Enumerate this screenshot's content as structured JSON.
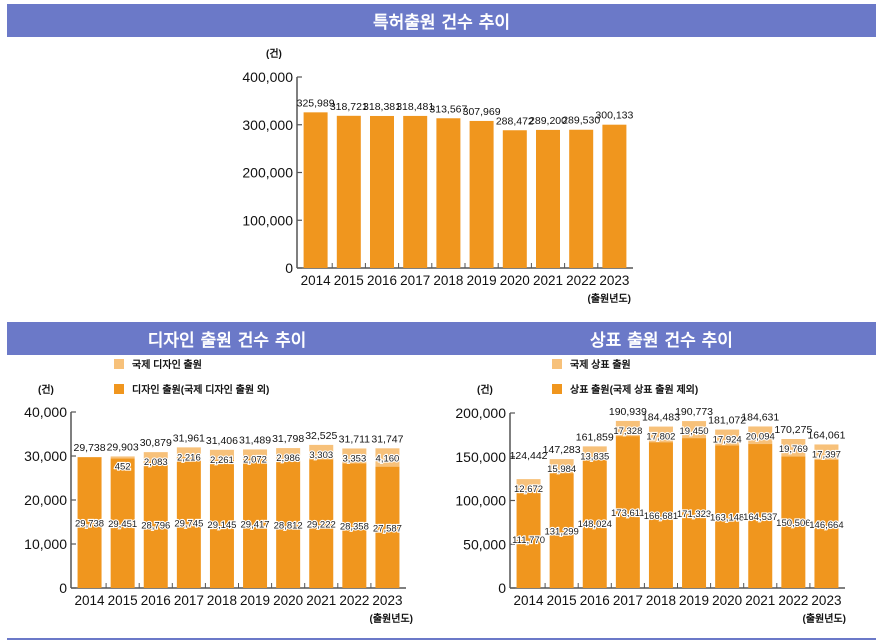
{
  "titles": {
    "patent": "특허출원 건수 추이",
    "design": "디자인 출원 건수 추이",
    "trademark": "상표 출원 건수 추이"
  },
  "colors": {
    "banner": "#6b79c8",
    "bar_main": "#f0961e",
    "bar_intl": "#f7c17a",
    "axis": "#555555"
  },
  "chart_data": [
    {
      "id": "patent",
      "type": "bar",
      "title": "특허출원 건수 추이",
      "unit_label": "(건)",
      "xlabel": "(출원년도)",
      "ylabel": "",
      "categories": [
        "2014",
        "2015",
        "2016",
        "2017",
        "2018",
        "2019",
        "2020",
        "2021",
        "2022",
        "2023"
      ],
      "values": [
        325989,
        318721,
        318381,
        318481,
        313567,
        307969,
        288472,
        289200,
        289530,
        300133
      ],
      "value_labels": [
        "325,989",
        "318,721",
        "318,381",
        "318,481",
        "313,567",
        "307,969",
        "288,472",
        "289,200",
        "289,530",
        "300,133"
      ],
      "ylim": [
        0,
        400000
      ],
      "yticks": [
        0,
        100000,
        200000,
        300000,
        400000
      ],
      "ytick_labels": [
        "0",
        "100,000",
        "200,000",
        "300,000",
        "400,000"
      ],
      "grid": false
    },
    {
      "id": "design",
      "type": "bar",
      "stacked": true,
      "title": "디자인 출원 건수 추이",
      "unit_label": "(건)",
      "xlabel": "(출원년도)",
      "ylabel": "",
      "legend_position": "top-left",
      "categories": [
        "2014",
        "2015",
        "2016",
        "2017",
        "2018",
        "2019",
        "2020",
        "2021",
        "2022",
        "2023"
      ],
      "series": [
        {
          "name": "디자인 출원(국제 디자인 출원 외)",
          "role": "main",
          "values": [
            29738,
            29451,
            28796,
            29745,
            29145,
            29417,
            28812,
            29222,
            28358,
            27587
          ],
          "labels": [
            "29,738",
            "29,451",
            "28,796",
            "29,745",
            "29,145",
            "29,417",
            "28,812",
            "29,222",
            "28,358",
            "27,587"
          ]
        },
        {
          "name": "국제 디자인 출원",
          "role": "intl",
          "values": [
            0,
            452,
            2083,
            2216,
            2261,
            2072,
            2986,
            3303,
            3353,
            4160
          ],
          "labels": [
            "",
            "452",
            "2,083",
            "2,216",
            "2,261",
            "2,072",
            "2,986",
            "3,303",
            "3,353",
            "4,160"
          ]
        }
      ],
      "totals": [
        29738,
        29903,
        30879,
        31961,
        31406,
        31489,
        31798,
        32525,
        31711,
        31747
      ],
      "total_labels": [
        "29,738",
        "29,903",
        "30,879",
        "31,961",
        "31,406",
        "31,489",
        "31,798",
        "32,525",
        "31,711",
        "31,747"
      ],
      "ylim": [
        0,
        40000
      ],
      "yticks": [
        0,
        10000,
        20000,
        30000,
        40000
      ],
      "ytick_labels": [
        "0",
        "10,000",
        "20,000",
        "30,000",
        "40,000"
      ],
      "grid": false
    },
    {
      "id": "trademark",
      "type": "bar",
      "stacked": true,
      "title": "상표 출원 건수 추이",
      "unit_label": "(건)",
      "xlabel": "(출원년도)",
      "ylabel": "",
      "legend_position": "top-left",
      "categories": [
        "2014",
        "2015",
        "2016",
        "2017",
        "2018",
        "2019",
        "2020",
        "2021",
        "2022",
        "2023"
      ],
      "series": [
        {
          "name": "상표 출원(국제 상표 출원 제외)",
          "role": "main",
          "values": [
            111770,
            131299,
            148024,
            173611,
            166681,
            171323,
            163148,
            164537,
            150506,
            146664
          ],
          "labels": [
            "111,770",
            "131,299",
            "148,024",
            "173,611",
            "166,681",
            "171,323",
            "163,148",
            "164,537",
            "150,506",
            "146,664"
          ]
        },
        {
          "name": "국제 상표 출원",
          "role": "intl",
          "values": [
            12672,
            15984,
            13835,
            17328,
            17802,
            19450,
            17924,
            20094,
            19769,
            17397
          ],
          "labels": [
            "12,672",
            "15,984",
            "13,835",
            "17,328",
            "17,802",
            "19,450",
            "17,924",
            "20,094",
            "19,769",
            "17,397"
          ]
        }
      ],
      "totals": [
        124442,
        147283,
        161859,
        190939,
        184483,
        190773,
        181072,
        184631,
        170275,
        164061
      ],
      "total_labels": [
        "124,442",
        "147,283",
        "161,859",
        "190,939",
        "184,483",
        "190,773",
        "181,072",
        "184,631",
        "170,275",
        "164,061"
      ],
      "ylim": [
        0,
        200000
      ],
      "yticks": [
        0,
        50000,
        100000,
        150000,
        200000
      ],
      "ytick_labels": [
        "0",
        "50,000",
        "100,000",
        "150,000",
        "200,000"
      ],
      "grid": false
    }
  ]
}
